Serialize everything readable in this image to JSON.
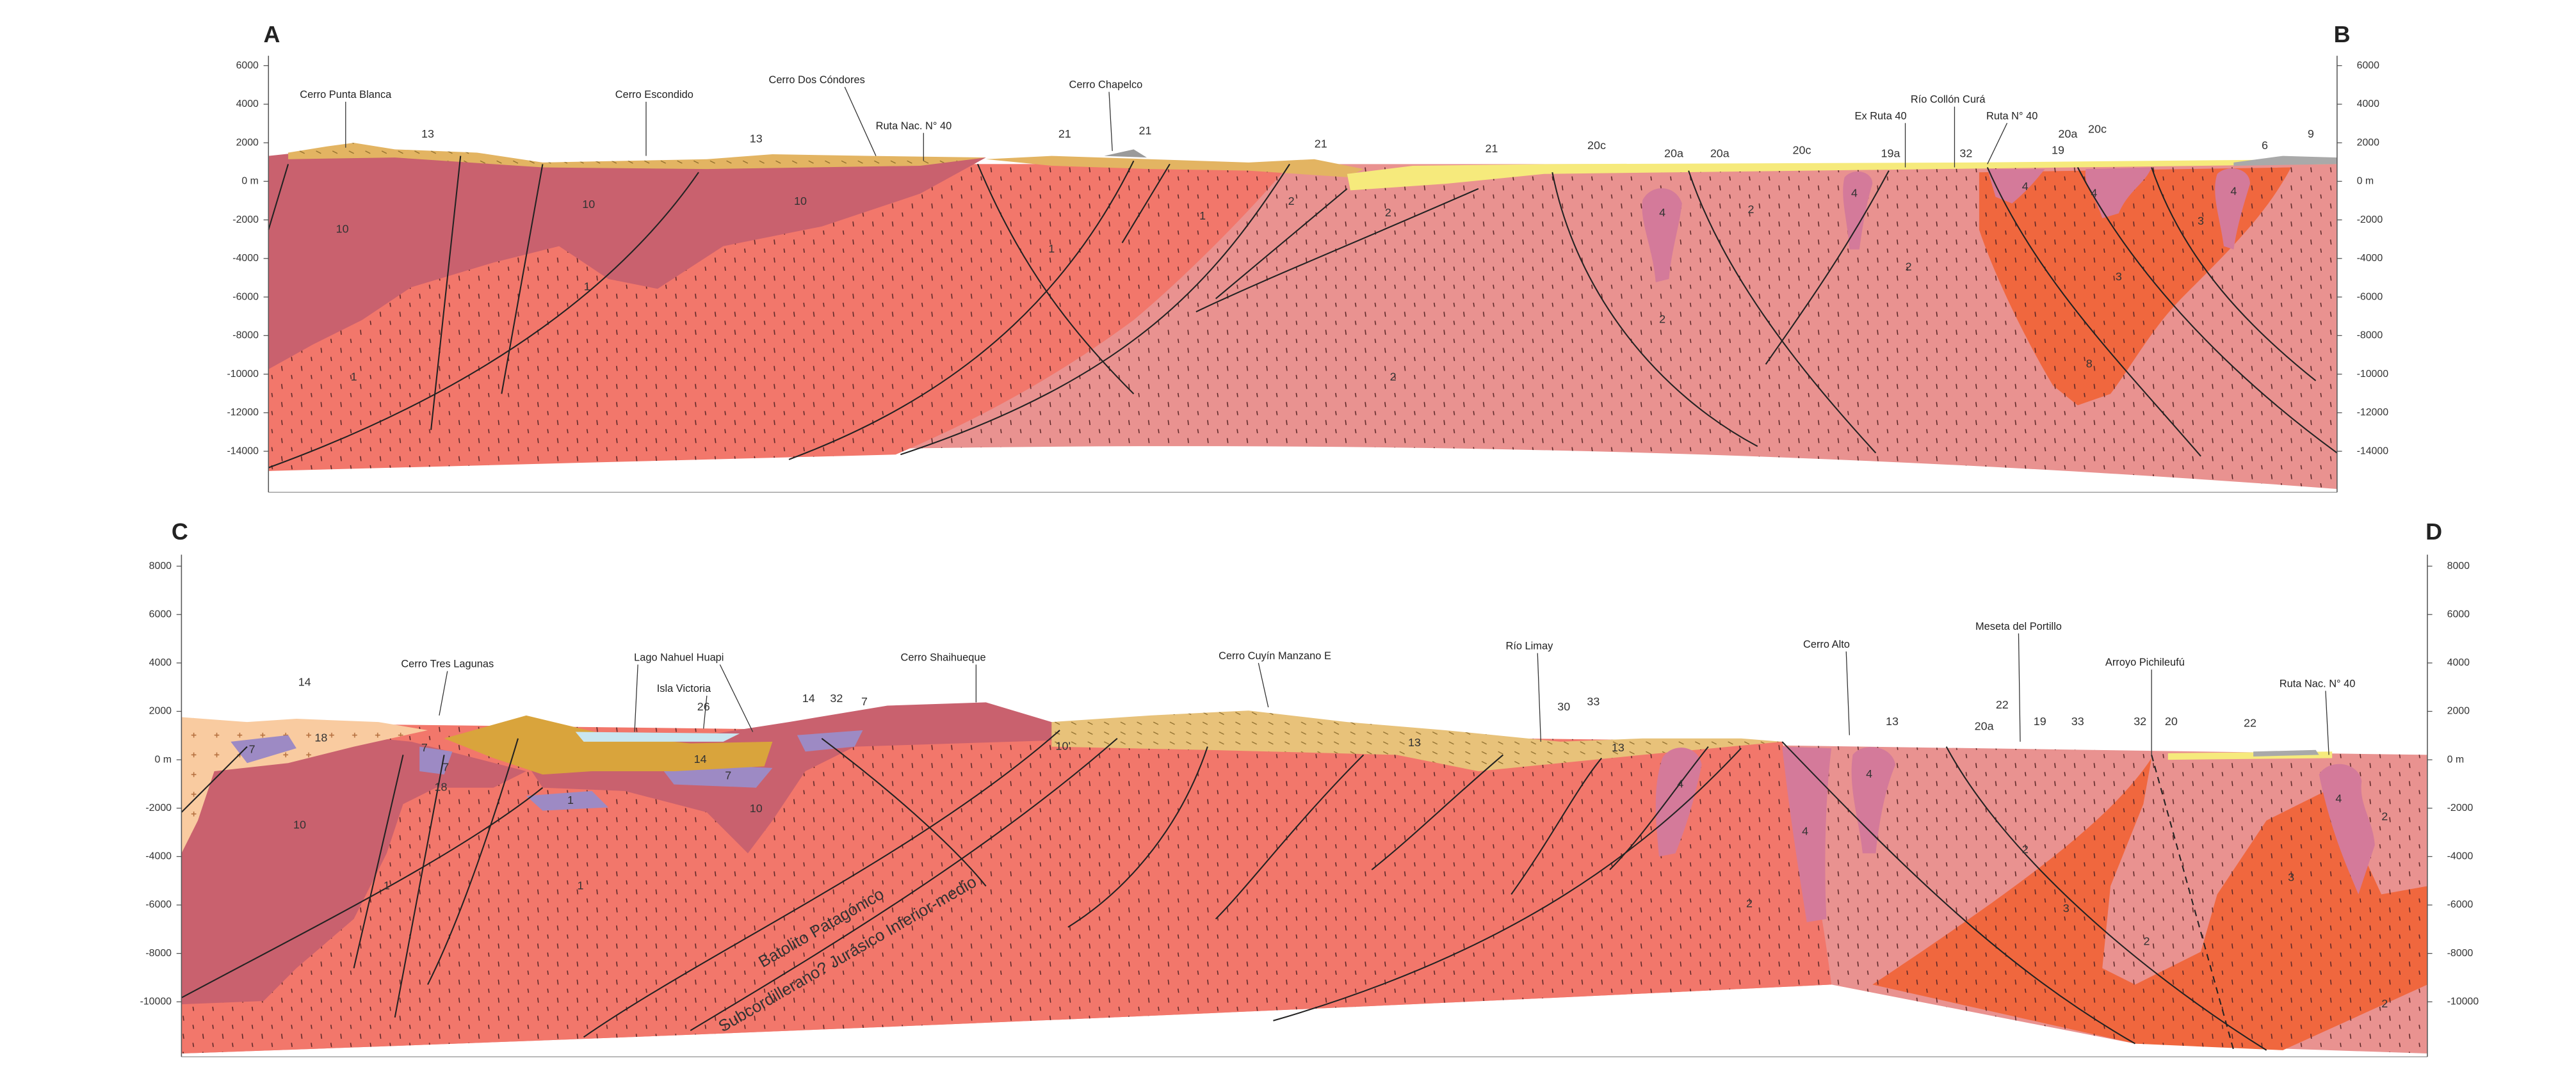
{
  "sections": [
    {
      "start_label": "A",
      "end_label": "B",
      "depth_ticks": [
        "6000",
        "4000",
        "2000",
        "0 m",
        "-2000",
        "-4000",
        "-6000",
        "-8000",
        "-10000",
        "-12000",
        "-14000"
      ],
      "place_names": [
        "Cerro Punta Blanca",
        "Cerro Escondido",
        "Cerro Dos Cóndores",
        "Ruta Nac. N° 40",
        "Cerro Chapelco",
        "Ex Ruta 40",
        "Río Collón Curá",
        "Ruta N° 40"
      ],
      "unit_labels": [
        "13",
        "13",
        "21",
        "21",
        "21",
        "21",
        "20c",
        "20a",
        "20a",
        "20c",
        "19a",
        "32",
        "19",
        "20a",
        "20c",
        "6",
        "9",
        "10",
        "10",
        "10",
        "1",
        "1",
        "1",
        "1",
        "2",
        "2",
        "2",
        "2",
        "2",
        "2",
        "4",
        "4",
        "4",
        "4",
        "4",
        "3",
        "3",
        "8"
      ]
    },
    {
      "start_label": "C",
      "end_label": "D",
      "depth_ticks": [
        "8000",
        "6000",
        "4000",
        "2000",
        "0 m",
        "-2000",
        "-4000",
        "-6000",
        "-8000",
        "-10000"
      ],
      "place_names": [
        "Cerro Tres Lagunas",
        "Lago  Nahuel  Huapi",
        "Isla Victoria",
        "Cerro Shaihueque",
        "Cerro Cuyín Manzano E",
        "Río Limay",
        "Cerro Alto",
        "Meseta del Portillo",
        "Arroyo Pichileufú",
        "Ruta Nac. N° 40"
      ],
      "unit_labels": [
        "14",
        "26",
        "14",
        "32",
        "7",
        "30",
        "33",
        "13",
        "22",
        "20a",
        "19",
        "33",
        "32",
        "20",
        "22",
        "18",
        "7",
        "7",
        "7",
        "18",
        "7",
        "14",
        "1",
        "10",
        "10",
        "10'",
        "1",
        "1",
        "13",
        "13",
        "4",
        "4",
        "4",
        "4",
        "2",
        "2",
        "2",
        "2",
        "2",
        "3",
        "3"
      ],
      "formation_labels": [
        "Batolito Patagónico",
        "Subcordillerano? Jurásico Inferior-medio"
      ]
    }
  ]
}
